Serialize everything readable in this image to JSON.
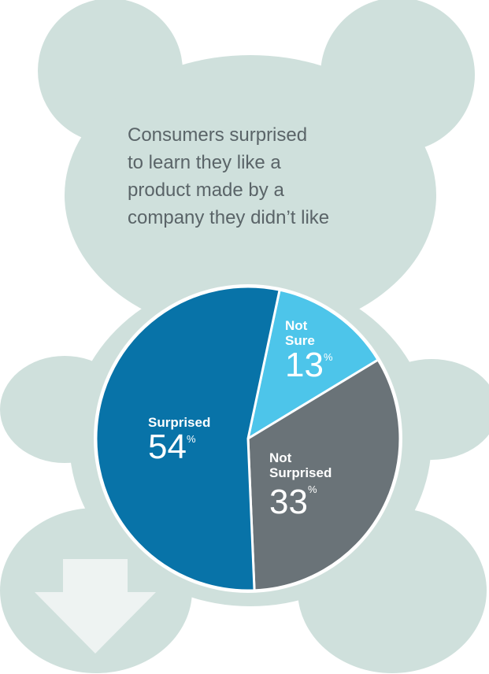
{
  "title_lines": [
    "Consumers surprised",
    "to learn they like a",
    "product made by a",
    "company they didn’t like"
  ],
  "colors": {
    "bear": "#cfe0dc",
    "arrow": "#eef3f2",
    "surprised": "#0873a8",
    "not_surprised": "#6a7378",
    "not_sure": "#4dc5ea",
    "label": "#ffffff",
    "title": "#5a6468"
  },
  "icons": [
    "teddy-bear-silhouette",
    "down-arrow-icon"
  ],
  "chart_data": {
    "type": "pie",
    "title": "Consumers surprised to learn they like a product made by a company they didn’t like",
    "unit": "%",
    "slices": [
      {
        "label": "Not Sure",
        "label_lines": [
          "Not",
          "Sure"
        ],
        "value": 13,
        "value_text": "13",
        "color": "#4dc5ea"
      },
      {
        "label": "Not Surprised",
        "label_lines": [
          "Not",
          "Surprised"
        ],
        "value": 33,
        "value_text": "33",
        "color": "#6a7378"
      },
      {
        "label": "Surprised",
        "label_lines": [
          "Surprised"
        ],
        "value": 54,
        "value_text": "54",
        "color": "#0873a8"
      }
    ],
    "start_angle_deg": 12,
    "direction": "clockwise"
  }
}
